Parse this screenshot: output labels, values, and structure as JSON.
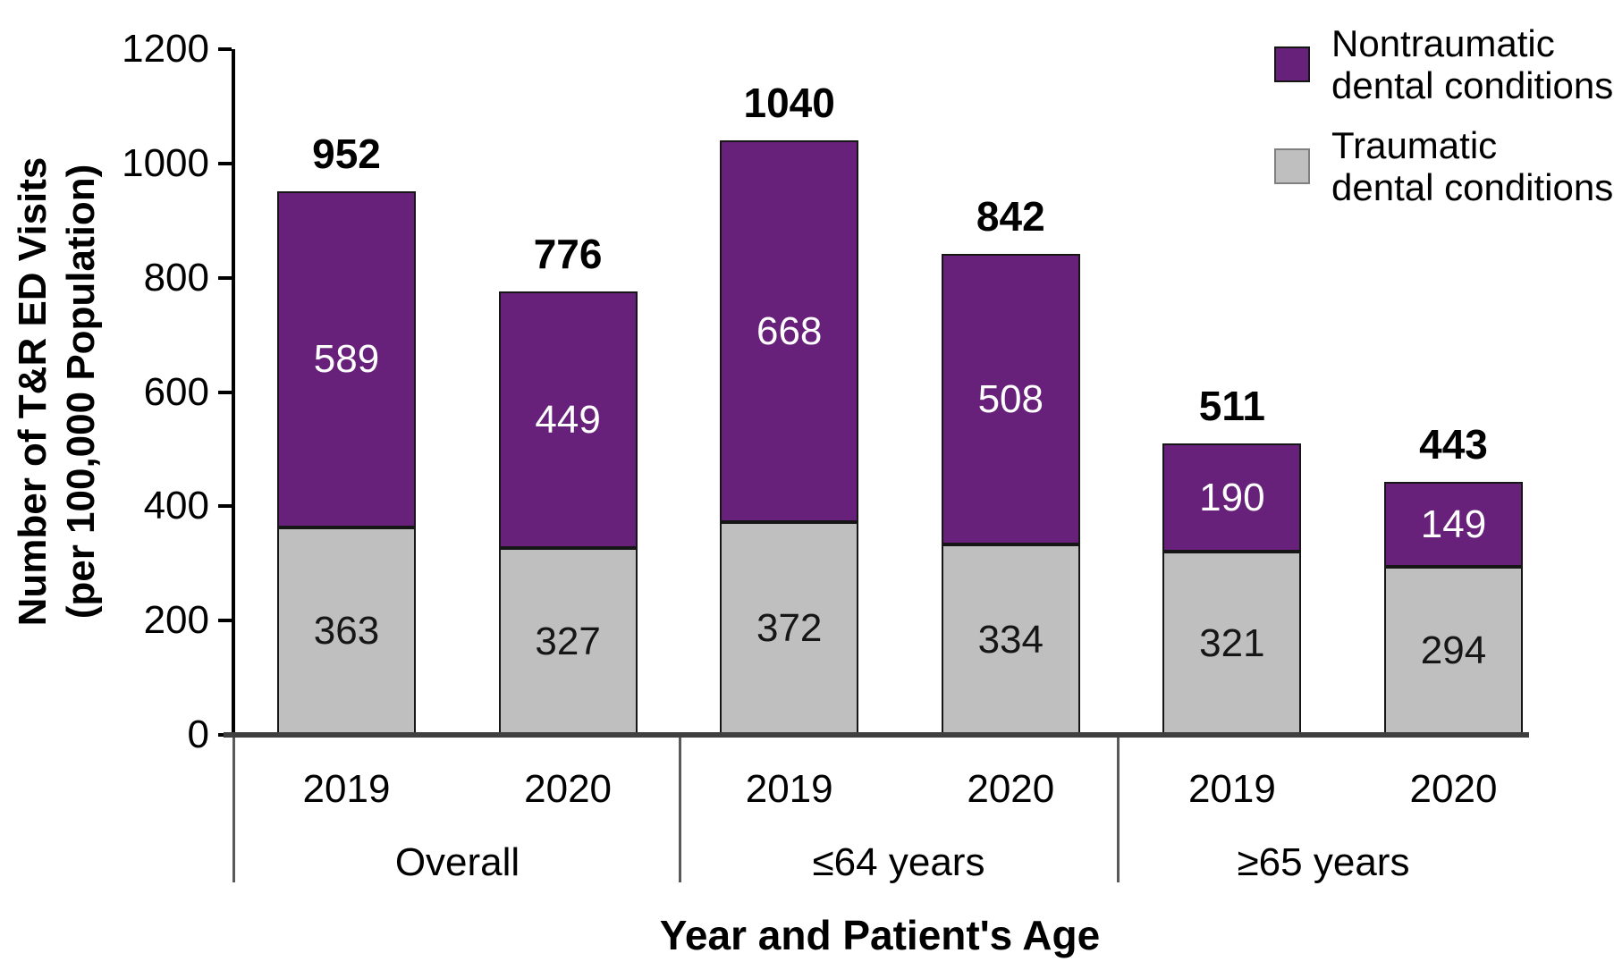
{
  "chart_data": {
    "type": "bar",
    "stacked": true,
    "xlabel": "Year and Patient's Age",
    "ylabel_line1": "Number of T&R ED Visits",
    "ylabel_line2": "(per 100,000 Population)",
    "ylim": [
      0,
      1200
    ],
    "yticks": [
      0,
      200,
      400,
      600,
      800,
      1000,
      1200
    ],
    "grid": false,
    "legend_position": "top-right",
    "series_names": [
      "Nontraumatic dental conditions",
      "Traumatic dental conditions"
    ],
    "groups": [
      {
        "label": "Overall",
        "bars": [
          {
            "year": "2019",
            "traumatic": 363,
            "nontraumatic": 589,
            "total": 952
          },
          {
            "year": "2020",
            "traumatic": 327,
            "nontraumatic": 449,
            "total": 776
          }
        ]
      },
      {
        "label": "≤64 years",
        "bars": [
          {
            "year": "2019",
            "traumatic": 372,
            "nontraumatic": 668,
            "total": 1040
          },
          {
            "year": "2020",
            "traumatic": 334,
            "nontraumatic": 508,
            "total": 842
          }
        ]
      },
      {
        "label": "≥65 years",
        "bars": [
          {
            "year": "2019",
            "traumatic": 321,
            "nontraumatic": 190,
            "total": 511
          },
          {
            "year": "2020",
            "traumatic": 294,
            "nontraumatic": 149,
            "total": 443
          }
        ]
      }
    ],
    "legend": [
      {
        "line1": "Nontraumatic",
        "line2": "dental conditions"
      },
      {
        "line1": "Traumatic",
        "line2": "dental conditions"
      }
    ]
  },
  "colors": {
    "nontraumatic_fill": "#68217A",
    "nontraumatic_label": "#FFFFFF",
    "traumatic_fill": "#BFBFBF",
    "traumatic_label": "#161616",
    "bar_border": "#161616",
    "nontraumatic_swatch_border": "#161616",
    "traumatic_swatch_border": "#7F7F7F",
    "axis": "#000000",
    "baseline": "#3F3F3F",
    "divider": "#595959",
    "text": "#000000"
  }
}
